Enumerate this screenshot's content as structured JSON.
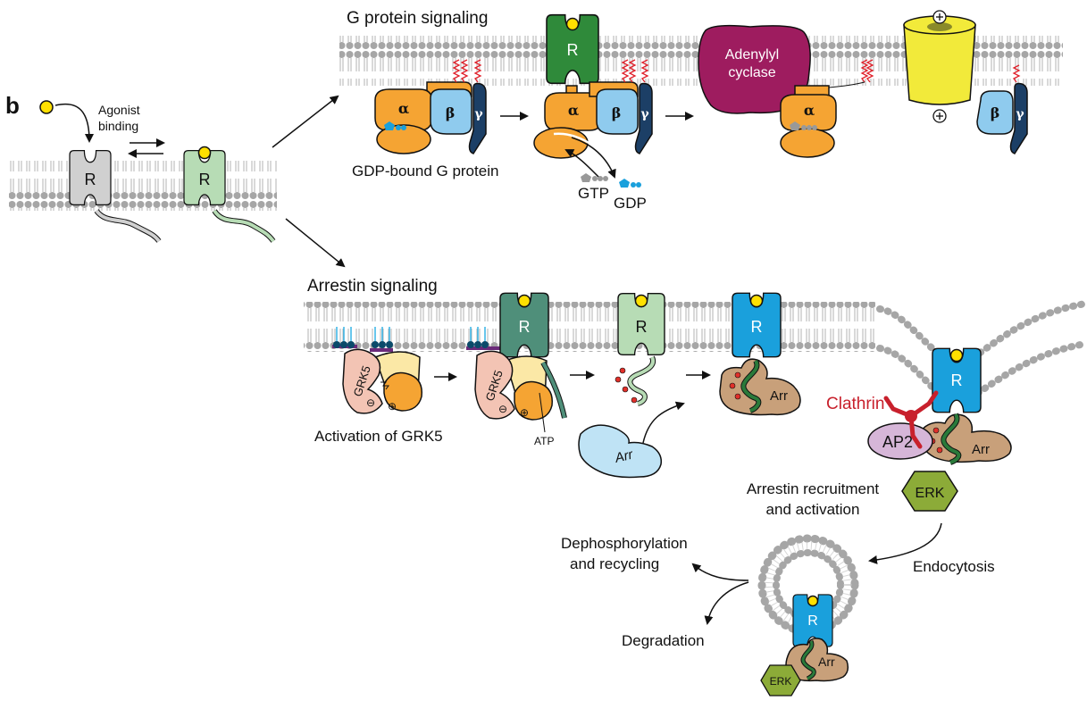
{
  "panel_letter": "b",
  "agonist": {
    "line1": "Agonist",
    "line2": "binding"
  },
  "receptor_label": "R",
  "g_protein": {
    "title": "G protein signaling",
    "alpha": "α",
    "beta": "β",
    "gamma": "γ",
    "gdp_bound": "GDP-bound G protein",
    "gtp": "GTP",
    "gdp": "GDP",
    "adenylyl_line1": "Adenylyl",
    "adenylyl_line2": "cyclase",
    "plus": "+"
  },
  "arrestin": {
    "title": "Arrestin signaling",
    "grk5": "GRK5",
    "activation": "Activation of GRK5",
    "atp": "ATP",
    "arr": "Arr",
    "clathrin": "Clathrin",
    "ap2": "AP2",
    "erk": "ERK",
    "recruit_line1": "Arrestin recruitment",
    "recruit_line2": "and activation",
    "endocytosis": "Endocytosis",
    "dephos_line1": "Dephosphorylation",
    "dephos_line2": "and recycling",
    "degradation": "Degradation"
  },
  "colors": {
    "receptor_inactive": "#d0d0d0",
    "receptor_active": "#b7dcb5",
    "receptor_gprotein": "#2f8a3a",
    "receptor_grk": "#4f8f7a",
    "receptor_arrestin": "#1aa0dc",
    "g_alpha": "#f5a433",
    "g_beta": "#8fcbee",
    "g_gamma": "#1c3f66",
    "adenylyl_cyclase": "#9e1c5f",
    "channel": "#f2ea3a",
    "grk5": "#f3c4b4",
    "arrestin": "#c8a07a",
    "arrestin_free": "#bfe3f5",
    "ap2": "#d6b6d8",
    "erk": "#8cab38",
    "clathrin": "#c8202c",
    "agonist": "#ffe000"
  }
}
